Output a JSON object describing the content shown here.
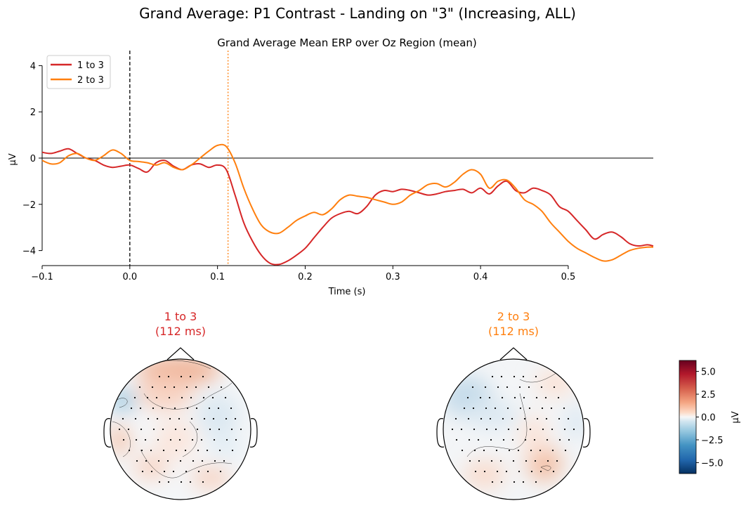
{
  "figure": {
    "suptitle": "Grand Average: P1 Contrast - Landing on \"3\" (Increasing, ALL)"
  },
  "chart_data": [
    {
      "type": "line",
      "title": "Grand Average Mean ERP over Oz Region (mean)",
      "xlabel": "Time (s)",
      "ylabel": "µV",
      "xlim": [
        -0.1,
        0.597
      ],
      "ylim": [
        -4.65,
        4.65
      ],
      "x_ticks": [
        -0.1,
        0.0,
        0.1,
        0.2,
        0.3,
        0.4,
        0.5
      ],
      "x_tick_labels": [
        "−0.1",
        "0.0",
        "0.1",
        "0.2",
        "0.3",
        "0.4",
        "0.5"
      ],
      "y_ticks": [
        4,
        2,
        0,
        -2,
        -4
      ],
      "y_tick_labels": [
        "4",
        "2",
        "0",
        "−2",
        "−4"
      ],
      "legend_position": "top-left",
      "vlines": [
        {
          "x": 0.0,
          "color": "#000000",
          "style": "dashed"
        },
        {
          "x": 0.112,
          "color": "#ff7f0e",
          "style": "dotted"
        }
      ],
      "hline": 0,
      "series": [
        {
          "name": "1 to 3",
          "color": "#d62728",
          "x": [
            -0.1,
            -0.09,
            -0.08,
            -0.07,
            -0.06,
            -0.05,
            -0.04,
            -0.03,
            -0.02,
            -0.01,
            0.0,
            0.01,
            0.02,
            0.03,
            0.04,
            0.05,
            0.06,
            0.07,
            0.08,
            0.09,
            0.1,
            0.11,
            0.12,
            0.13,
            0.14,
            0.15,
            0.16,
            0.17,
            0.18,
            0.19,
            0.2,
            0.21,
            0.22,
            0.23,
            0.24,
            0.25,
            0.26,
            0.27,
            0.28,
            0.29,
            0.3,
            0.31,
            0.32,
            0.33,
            0.34,
            0.35,
            0.36,
            0.37,
            0.38,
            0.39,
            0.4,
            0.41,
            0.42,
            0.43,
            0.44,
            0.45,
            0.46,
            0.47,
            0.48,
            0.49,
            0.5,
            0.51,
            0.52,
            0.53,
            0.54,
            0.55,
            0.56,
            0.57,
            0.58,
            0.59,
            0.597
          ],
          "y": [
            0.25,
            0.2,
            0.3,
            0.4,
            0.2,
            0.0,
            -0.1,
            -0.3,
            -0.4,
            -0.35,
            -0.3,
            -0.45,
            -0.6,
            -0.2,
            -0.1,
            -0.35,
            -0.5,
            -0.3,
            -0.25,
            -0.4,
            -0.3,
            -0.5,
            -1.6,
            -2.8,
            -3.6,
            -4.2,
            -4.55,
            -4.6,
            -4.45,
            -4.2,
            -3.9,
            -3.45,
            -3.0,
            -2.6,
            -2.4,
            -2.3,
            -2.4,
            -2.1,
            -1.6,
            -1.4,
            -1.45,
            -1.35,
            -1.4,
            -1.5,
            -1.6,
            -1.55,
            -1.45,
            -1.4,
            -1.35,
            -1.5,
            -1.3,
            -1.55,
            -1.2,
            -1.0,
            -1.4,
            -1.5,
            -1.3,
            -1.4,
            -1.6,
            -2.1,
            -2.3,
            -2.7,
            -3.1,
            -3.5,
            -3.3,
            -3.2,
            -3.4,
            -3.7,
            -3.8,
            -3.75,
            -3.8
          ]
        },
        {
          "name": "2 to 3",
          "color": "#ff7f0e",
          "x": [
            -0.1,
            -0.09,
            -0.08,
            -0.07,
            -0.06,
            -0.05,
            -0.04,
            -0.03,
            -0.02,
            -0.01,
            0.0,
            0.01,
            0.02,
            0.03,
            0.04,
            0.05,
            0.06,
            0.07,
            0.08,
            0.09,
            0.1,
            0.11,
            0.12,
            0.13,
            0.14,
            0.15,
            0.16,
            0.17,
            0.18,
            0.19,
            0.2,
            0.21,
            0.22,
            0.23,
            0.24,
            0.25,
            0.26,
            0.27,
            0.28,
            0.29,
            0.3,
            0.31,
            0.32,
            0.33,
            0.34,
            0.35,
            0.36,
            0.37,
            0.38,
            0.39,
            0.4,
            0.41,
            0.42,
            0.43,
            0.44,
            0.45,
            0.46,
            0.47,
            0.48,
            0.49,
            0.5,
            0.51,
            0.52,
            0.53,
            0.54,
            0.55,
            0.56,
            0.57,
            0.58,
            0.59,
            0.597
          ],
          "y": [
            -0.1,
            -0.25,
            -0.2,
            0.1,
            0.2,
            0.0,
            -0.1,
            0.1,
            0.35,
            0.2,
            -0.1,
            -0.15,
            -0.2,
            -0.3,
            -0.2,
            -0.4,
            -0.5,
            -0.3,
            0.0,
            0.3,
            0.55,
            0.5,
            -0.2,
            -1.3,
            -2.2,
            -2.9,
            -3.2,
            -3.25,
            -3.0,
            -2.7,
            -2.5,
            -2.35,
            -2.45,
            -2.2,
            -1.8,
            -1.6,
            -1.65,
            -1.7,
            -1.8,
            -1.9,
            -2.0,
            -1.9,
            -1.6,
            -1.4,
            -1.15,
            -1.1,
            -1.25,
            -1.05,
            -0.7,
            -0.5,
            -0.7,
            -1.3,
            -1.0,
            -0.95,
            -1.3,
            -1.8,
            -2.0,
            -2.3,
            -2.8,
            -3.2,
            -3.6,
            -3.9,
            -4.1,
            -4.3,
            -4.45,
            -4.4,
            -4.2,
            -4.0,
            -3.9,
            -3.85,
            -3.85
          ]
        }
      ]
    },
    {
      "type": "heatmap",
      "title": "1 to 3\n(112 ms)",
      "title_lines": [
        "1 to 3",
        "(112 ms)"
      ],
      "title_color": "#d62728",
      "description_kind": "topomap",
      "colorbar": {
        "label": "µV",
        "ticks": [
          5.0,
          2.5,
          0.0,
          -2.5,
          -5.0
        ],
        "tick_labels": [
          "5.0",
          "2.5",
          "0.0",
          "−2.5",
          "−5.0"
        ],
        "vlim": [
          -6.2,
          6.2
        ],
        "colormap": "RdBu_r"
      }
    },
    {
      "type": "heatmap",
      "title": "2 to 3\n(112 ms)",
      "title_lines": [
        "2 to 3",
        "(112 ms)"
      ],
      "title_color": "#ff7f0e",
      "description_kind": "topomap"
    }
  ]
}
